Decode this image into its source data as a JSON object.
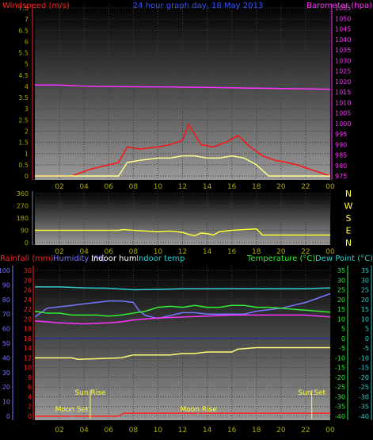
{
  "chart_data": [
    {
      "type": "line",
      "title": "24 hour graph day, 18 May 2013",
      "ylabel_left": "Windspeed (m/s)",
      "ylabel_right": "Barometer (hpa)",
      "x_ticks": [
        "02",
        "04",
        "06",
        "08",
        "10",
        "12",
        "14",
        "16",
        "18",
        "20",
        "22",
        "00"
      ],
      "y_left_ticks": [
        "0",
        "0.5",
        "1",
        "1.5",
        "2",
        "2.5",
        "3",
        "3.5",
        "4",
        "4.5",
        "5",
        "5.5",
        "6",
        "6.5",
        "7",
        "7.5"
      ],
      "y_right_ticks": [
        "975",
        "980",
        "985",
        "990",
        "995",
        "1000",
        "1005",
        "1010",
        "1015",
        "1020",
        "1025",
        "1030",
        "1035",
        "1040",
        "1045",
        "1050",
        "1055"
      ],
      "ylim_left": [
        0,
        7.5
      ],
      "ylim_right": [
        975,
        1055
      ],
      "series": [
        {
          "name": "Barometer (hpa)",
          "color": "#ff33ff",
          "x_hours": [
            0,
            2,
            4,
            6,
            8,
            10,
            12,
            14,
            16,
            18,
            20,
            22,
            24
          ],
          "values": [
            1018.3,
            1018.3,
            1017.8,
            1017.6,
            1017.5,
            1017.4,
            1017.3,
            1017.2,
            1017.0,
            1016.8,
            1016.6,
            1016.5,
            1016.3
          ]
        },
        {
          "name": "Gust",
          "color": "#ff1111",
          "x_hours": [
            0,
            3,
            4.5,
            6.8,
            7.5,
            8.5,
            10,
            11,
            12,
            12.5,
            13.5,
            14.5,
            15.5,
            16.5,
            17.5,
            18.5,
            19.5,
            20.5,
            21.3,
            24
          ],
          "values": [
            0,
            0,
            0.3,
            0.6,
            1.3,
            1.2,
            1.3,
            1.4,
            1.6,
            2.3,
            1.4,
            1.3,
            1.5,
            1.8,
            1.3,
            0.9,
            0.7,
            0.6,
            0.5,
            0
          ]
        },
        {
          "name": "Average",
          "color": "#ffff88",
          "x_hours": [
            0,
            6.8,
            7.5,
            8.5,
            10,
            11,
            12,
            13,
            14,
            15,
            16,
            17,
            18,
            19,
            24
          ],
          "values": [
            0,
            0,
            0.6,
            0.7,
            0.8,
            0.8,
            0.9,
            0.9,
            0.8,
            0.8,
            0.9,
            0.8,
            0.5,
            0,
            0
          ]
        }
      ]
    },
    {
      "type": "line",
      "y_ticks": [
        "0",
        "90",
        "180",
        "270",
        "360"
      ],
      "ylim": [
        0,
        360
      ],
      "compass": [
        "N",
        "W",
        "S",
        "E",
        "N"
      ],
      "series": [
        {
          "name": "Wind direction",
          "color": "#ffff33",
          "x_hours": [
            0,
            6.8,
            7.2,
            8,
            9,
            10,
            11,
            12,
            12.5,
            13,
            13.5,
            14,
            14.5,
            15,
            16,
            17,
            18,
            18.5,
            24
          ],
          "values": [
            90,
            90,
            95,
            90,
            85,
            80,
            85,
            75,
            60,
            50,
            70,
            65,
            55,
            80,
            90,
            95,
            100,
            55,
            55
          ]
        }
      ]
    },
    {
      "type": "line",
      "ylabel_left_1": "Rainfall (mm)",
      "ylabel_left_2": "Humidity (%)",
      "label_indoor_hum": "Indoor hum",
      "label_indoor_temp": "Indoor temp",
      "ylabel_right_1": "Temperature (°C)",
      "ylabel_right_2": "Dew Point (°C)",
      "y_rain_ticks": [
        "0",
        "2",
        "4",
        "6",
        "8",
        "10",
        "12",
        "14",
        "16",
        "18",
        "20",
        "22",
        "24",
        "26",
        "28",
        "30"
      ],
      "y_hum_ticks": [
        "0",
        "10",
        "20",
        "30",
        "40",
        "50",
        "60",
        "70",
        "80",
        "90",
        "100"
      ],
      "y_temp_ticks": [
        "-40",
        "-35",
        "-30",
        "-25",
        "-20",
        "-15",
        "-10",
        "-5",
        "0",
        "5",
        "10",
        "15",
        "20",
        "25",
        "30",
        "35"
      ],
      "ylim_rain": [
        0,
        30
      ],
      "ylim_hum": [
        0,
        100
      ],
      "ylim_temp": [
        -40,
        35
      ],
      "annotations": {
        "moon_set": "Moon Set",
        "sun_rise": "Sun Rise",
        "moon_rise": "Moon Rise",
        "sun_set": "Sun Set"
      },
      "annotation_x_hours": {
        "moon_set": 3,
        "sun_rise": 4.5,
        "moon_rise": 13.3,
        "sun_set": 22.5
      },
      "series": [
        {
          "name": "Indoor temp",
          "color": "#33cccc",
          "axis": "temp",
          "x_hours": [
            0,
            2,
            4,
            6,
            8,
            10,
            12,
            14,
            16,
            18,
            20,
            22,
            24
          ],
          "values": [
            26.5,
            26.5,
            26,
            25.8,
            25,
            25.2,
            25.5,
            25.5,
            25.6,
            25.6,
            25.5,
            25.6,
            26
          ]
        },
        {
          "name": "Humidity",
          "color": "#7777ff",
          "axis": "hum",
          "x_hours": [
            0,
            1,
            2,
            3,
            4,
            5,
            6,
            7,
            8,
            8.5,
            9,
            10,
            11,
            12,
            13,
            14,
            15,
            16,
            17,
            18,
            19,
            20,
            21,
            22,
            23,
            24
          ],
          "values": [
            68,
            74,
            75,
            76,
            77,
            78,
            79,
            79,
            78,
            72,
            69,
            67,
            69,
            71,
            71,
            70,
            70,
            70,
            70,
            72,
            73,
            74,
            76,
            78,
            81,
            84
          ]
        },
        {
          "name": "Temperature",
          "color": "#33ee33",
          "axis": "temp",
          "x_hours": [
            0,
            1,
            2,
            3,
            4,
            5,
            6,
            7,
            8,
            9,
            10,
            11,
            12,
            13,
            14,
            15,
            16,
            17,
            18,
            19,
            20,
            21,
            22,
            23,
            24
          ],
          "values": [
            14,
            13,
            13,
            12,
            12,
            12,
            11.5,
            12,
            13,
            14,
            16,
            16.5,
            16,
            17,
            16,
            16,
            17,
            17,
            16,
            16,
            15.5,
            15,
            14.5,
            14,
            13.5
          ]
        },
        {
          "name": "Dew Point",
          "color": "#ff33ff",
          "axis": "temp",
          "x_hours": [
            0,
            2,
            4,
            6,
            7,
            8,
            10,
            12,
            14,
            16,
            18,
            20,
            22,
            24
          ],
          "values": [
            9,
            8,
            7.5,
            8,
            8.5,
            9.5,
            10.5,
            11,
            11.5,
            12,
            12,
            12,
            12,
            11
          ]
        },
        {
          "name": "Indoor hum",
          "color": "#ffff77",
          "axis": "hum",
          "x_hours": [
            0,
            3,
            3.5,
            7,
            8,
            11,
            12,
            13,
            14,
            16,
            16.5,
            18,
            22,
            24
          ],
          "values": [
            40,
            40,
            39,
            40,
            42,
            42,
            43,
            43,
            44,
            44,
            46,
            47,
            47,
            47
          ]
        },
        {
          "name": "Rainfall",
          "color": "#ff2222",
          "axis": "rain",
          "x_hours": [
            0,
            6.8,
            7.2,
            24
          ],
          "values": [
            0,
            0,
            0.6,
            0.6
          ]
        }
      ]
    }
  ],
  "ui": {
    "p1_ylabel": "Windspeed (m/s)",
    "p1_title": "24 hour graph day, 18 May 2013",
    "p1_ylabel_right": "Barometer (hpa)"
  },
  "colors": {
    "wind_axis": "#ff2222",
    "baro_axis": "#ff33ff",
    "title": "#3355ff",
    "rain_axis": "#ff2222",
    "hum_axis": "#7777ff",
    "temp_axis": "#33ee33",
    "dew_axis": "#33cccc",
    "tick_text": "#aaaa00",
    "compass": "#ffff33",
    "sun": "#ffff33"
  }
}
